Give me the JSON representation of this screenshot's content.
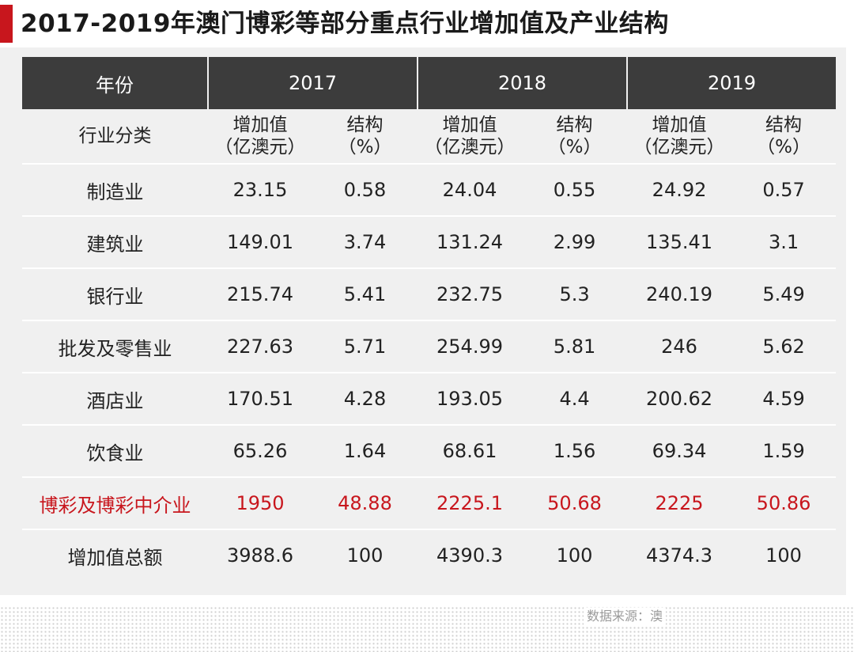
{
  "title": "2017-2019年澳门博彩等部分重点行业增加值及产业结构",
  "source_note": "数据来源：澳",
  "table": {
    "year_label": "年份",
    "years": [
      "2017",
      "2018",
      "2019"
    ],
    "category_label": "行业分类",
    "value_header_line1": "增加值",
    "value_header_line2": "（亿澳元）",
    "share_header_line1": "结构",
    "share_header_line2": "（%）",
    "rows": [
      {
        "name": "制造业",
        "cells": [
          "23.15",
          "0.58",
          "24.04",
          "0.55",
          "24.92",
          "0.57"
        ]
      },
      {
        "name": "建筑业",
        "cells": [
          "149.01",
          "3.74",
          "131.24",
          "2.99",
          "135.41",
          "3.1"
        ]
      },
      {
        "name": "银行业",
        "cells": [
          "215.74",
          "5.41",
          "232.75",
          "5.3",
          "240.19",
          "5.49"
        ]
      },
      {
        "name": "批发及零售业",
        "cells": [
          "227.63",
          "5.71",
          "254.99",
          "5.81",
          "246",
          "5.62"
        ]
      },
      {
        "name": "酒店业",
        "cells": [
          "170.51",
          "4.28",
          "193.05",
          "4.4",
          "200.62",
          "4.59"
        ]
      },
      {
        "name": "饮食业",
        "cells": [
          "65.26",
          "1.64",
          "68.61",
          "1.56",
          "69.34",
          "1.59"
        ]
      },
      {
        "name": "博彩及博彩中介业",
        "cells": [
          "1950",
          "48.88",
          "2225.1",
          "50.68",
          "2225",
          "50.86"
        ]
      },
      {
        "name": "增加值总额",
        "cells": [
          "3988.6",
          "100",
          "4390.3",
          "100",
          "4374.3",
          "100"
        ]
      }
    ]
  },
  "colors": {
    "accent": "#c8161d",
    "header_bg": "#3c3c3c",
    "panel_bg": "#f0f0f0"
  }
}
